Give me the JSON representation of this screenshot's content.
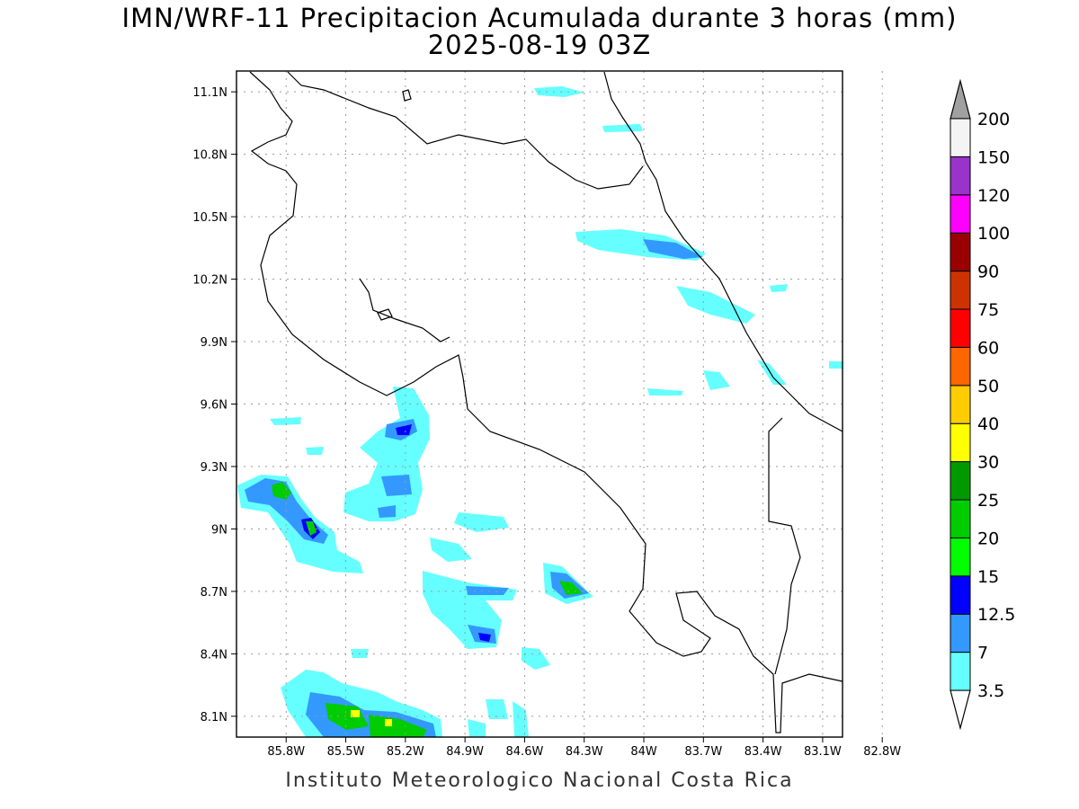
{
  "title": {
    "line1": "IMN/WRF-11 Precipitacion Acumulada durante 3 horas (mm)",
    "line2": "2025-08-19 03Z"
  },
  "credit": "Instituto Meteorologico Nacional Costa Rica",
  "map": {
    "lon_range": [
      -86.05,
      -83.0
    ],
    "lat_range": [
      8.0,
      11.2
    ],
    "lat_ticks": [
      "11.1N",
      "10.8N",
      "10.5N",
      "10.2N",
      "9.9N",
      "9.6N",
      "9.3N",
      "9N",
      "8.7N",
      "8.4N",
      "8.1N"
    ],
    "lon_ticks": [
      "85.8W",
      "85.5W",
      "85.2W",
      "84.9W",
      "84.6W",
      "84.3W",
      "84W",
      "83.7W",
      "83.4W",
      "83.1W",
      "82.8W"
    ],
    "gridlines": "dotted",
    "coastline_color": "#000000"
  },
  "colorbar": {
    "labels": [
      "3.5",
      "7",
      "12.5",
      "15",
      "20",
      "25",
      "30",
      "40",
      "50",
      "60",
      "75",
      "90",
      "100",
      "120",
      "150",
      "200"
    ],
    "colors": [
      "#66ffff",
      "#3399ff",
      "#0000ff",
      "#00ff00",
      "#00cc00",
      "#009900",
      "#ffff00",
      "#ffcc00",
      "#ff6600",
      "#ff0000",
      "#cc3300",
      "#990000",
      "#ff00ff",
      "#9933cc",
      "#f4f4f4",
      "#a0a0a0"
    ],
    "under_color": "#ffffff",
    "over_color": "#a0a0a0"
  }
}
